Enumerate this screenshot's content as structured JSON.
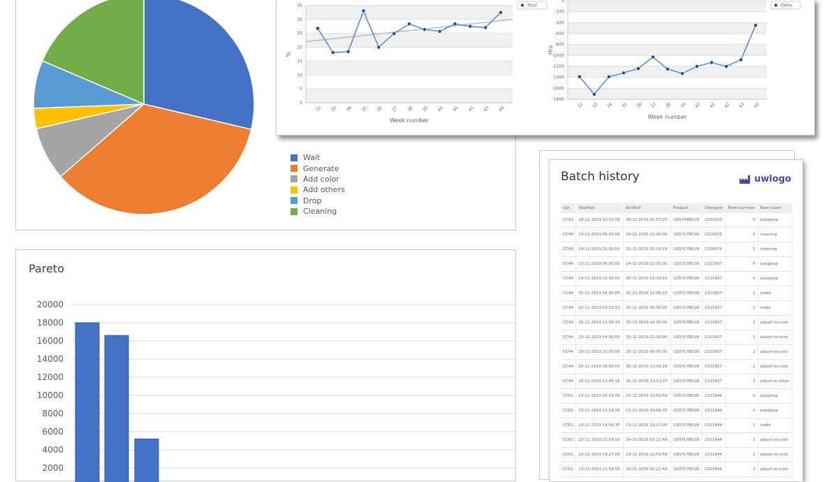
{
  "chart_data": [
    {
      "type": "pie",
      "categories": [
        "Wait",
        "Generate",
        "Add color",
        "Add others",
        "Drop",
        "Cleaning"
      ],
      "values": [
        29,
        35.3,
        7.9,
        3,
        7.1,
        18.8
      ],
      "colors": [
        "#4472c4",
        "#ed7d31",
        "#a5a5a5",
        "#ffc000",
        "#5b9bd5",
        "#70ad47"
      ]
    },
    {
      "type": "line",
      "xlabel": "Week number",
      "ylabel": "%",
      "ylim": [
        0,
        35
      ],
      "yticks": [
        0,
        5,
        10,
        15,
        20,
        25,
        30,
        35
      ],
      "categories": [
        "32",
        "33",
        "34",
        "35",
        "36",
        "37",
        "38",
        "39",
        "40",
        "41",
        "42",
        "43",
        "44"
      ],
      "series": [
        {
          "name": "Total",
          "values": [
            26.8,
            18.1,
            18.4,
            33.1,
            20,
            24.9,
            28.4,
            26.4,
            25.7,
            28.4,
            27.5,
            27.1,
            32.5
          ]
        }
      ],
      "trendline": [
        22,
        30
      ],
      "grid": true,
      "legend": "top-right"
    },
    {
      "type": "line",
      "xlabel": "Week number",
      "ylabel": "Hrs",
      "ylim": [
        -1800,
        0
      ],
      "yticks": [
        0,
        -200,
        -400,
        -600,
        -800,
        -1000,
        -1200,
        -1400,
        -1600,
        -1800
      ],
      "categories": [
        "32",
        "33",
        "34",
        "35",
        "36",
        "37",
        "38",
        "39",
        "40",
        "41",
        "42",
        "43",
        "44"
      ],
      "series": [
        {
          "name": "Delta",
          "values": [
            -1390,
            -1710,
            -1390,
            -1320,
            -1240,
            -1030,
            -1250,
            -1330,
            -1200,
            -1130,
            -1200,
            -1080,
            -450
          ]
        }
      ],
      "grid": true,
      "legend": "top-right"
    },
    {
      "type": "bar",
      "title": "Pareto",
      "ylim": [
        0,
        20000
      ],
      "yticks": [
        2000,
        4000,
        6000,
        8000,
        10000,
        12000,
        14000,
        16000,
        18000,
        20000
      ],
      "values": [
        18000,
        16600,
        5200
      ],
      "color": "#4472c4",
      "grid": true
    }
  ],
  "batch": {
    "title": "Batch history",
    "logo": "uwlogo",
    "columns": [
      "Lijn",
      "Starttijd",
      "Eindtijd",
      "Product",
      "Chargenr",
      "Fase nummer",
      "Fase naam"
    ],
    "rows": [
      [
        "CC43",
        "28-11-2019 10:51:58",
        "28-11-2019 10:57:20",
        "1G5Y04B01N",
        "2312003",
        "0",
        "Leegloop"
      ],
      [
        "CC49",
        "23-11-2019 06:00:00",
        "24-11-2019 22:00:00",
        "1G5Y17B01N",
        "2310675",
        "5",
        "cleaning"
      ],
      [
        "CC49",
        "24-11-2019 22:00:00",
        "25-11-2019 03:03:19",
        "1G5Y17B01N",
        "2310675",
        "5",
        "cleaning"
      ],
      [
        "CC44",
        "23-11-2019 06:00:00",
        "24-11-2019 22:00:00",
        "1G5Y17B01N",
        "2311607",
        "0",
        "Leegloop"
      ],
      [
        "CC44",
        "24-11-2019 22:00:00",
        "25-11-2019 03:33:53",
        "1G5Y17B01N",
        "2311607",
        "0",
        "Leegloop"
      ],
      [
        "CC44",
        "25-11-2019 06:00:00",
        "25-11-2019 11:06:10",
        "1G5Y17B01N",
        "2311607",
        "1",
        "make"
      ],
      [
        "CC44",
        "25-11-2019 03:33:53",
        "25-11-2019 06:00:00",
        "1G5Y17B01N",
        "2311607",
        "1",
        "make"
      ],
      [
        "CC44",
        "25-11-2019 11:06:10",
        "25-11-2019 14:00:00",
        "1G5Y17B01N",
        "2311607",
        "2",
        "adjust to color"
      ],
      [
        "CC44",
        "25-11-2019 14:00:00",
        "25-11-2019 22:00:00",
        "1G5Y17B01N",
        "2311607",
        "2",
        "adjust to color"
      ],
      [
        "CC44",
        "25-11-2019 22:00:00",
        "26-11-2019 06:00:00",
        "1G5Y17B01N",
        "2311607",
        "2",
        "adjust to color"
      ],
      [
        "CC44",
        "26-11-2019 06:00:00",
        "26-11-2019 12:49:16",
        "1G5Y17B01N",
        "2311607",
        "2",
        "adjust to color"
      ],
      [
        "CC44",
        "26-11-2019 12:49:16",
        "26-11-2019 13:12:37",
        "1G5Y17B01N",
        "2311607",
        "3",
        "adjust to other"
      ],
      [
        "CC62",
        "23-11-2019 05:59:59",
        "23-11-2019 13:59:59",
        "1G5Y17B01N",
        "2311844",
        "0",
        "Leegloop"
      ],
      [
        "CC62",
        "23-11-2019 13:59:59",
        "23-11-2019 14:56:37",
        "1G5Y17B01N",
        "2311844",
        "0",
        "Leegloop"
      ],
      [
        "CC62",
        "23-11-2019 14:56:37",
        "23-11-2019 19:27:00",
        "1G5Y17B01N",
        "2311844",
        "1",
        "make"
      ],
      [
        "CC62",
        "23-11-2019 21:59:59",
        "24-11-2019 02:21:49",
        "1G5Y17B01N",
        "2311844",
        "2",
        "adjust to color"
      ],
      [
        "CC62",
        "23-11-2019 19:27:00",
        "23-11-2019 21:59:59",
        "1G5Y17B01N",
        "2311844",
        "2",
        "adjust to color"
      ],
      [
        "CC62",
        "23-11-2019 21:59:59",
        "24-11-2019 02:21:49",
        "1G5Y17B01N",
        "2311844",
        "2",
        "adjust to color"
      ]
    ]
  }
}
